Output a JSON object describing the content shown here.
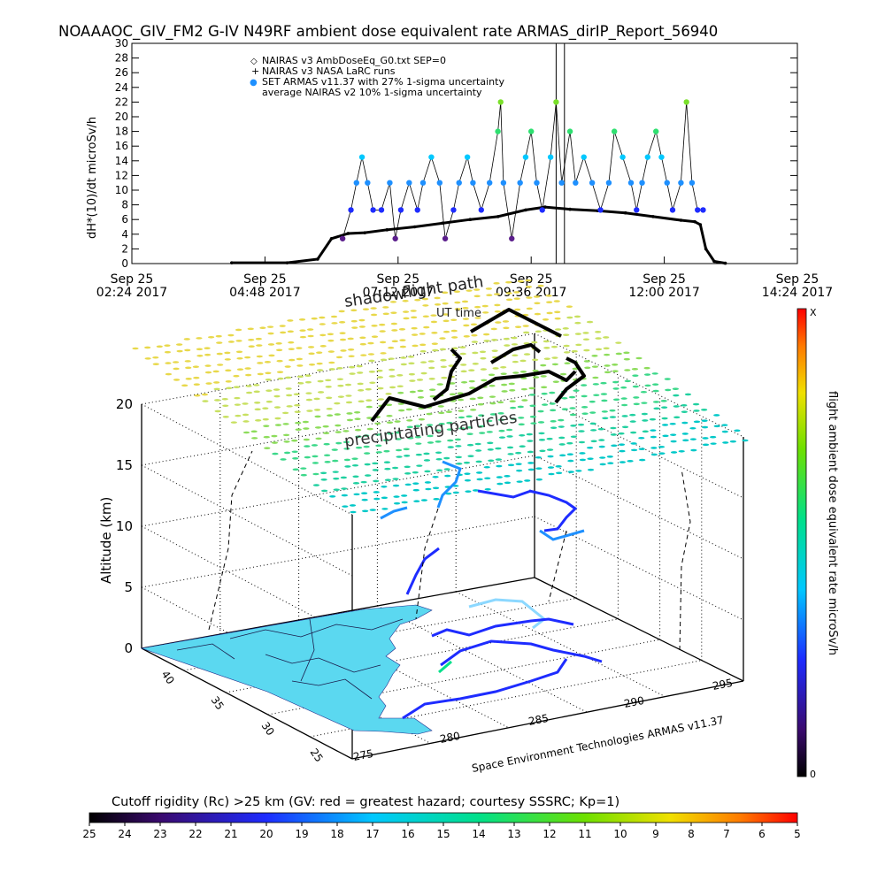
{
  "title": "NOAAAOC_GIV_FM2 G-IV   N49RF  ambient dose equivalent rate ARMAS_dirIP_Report_56940",
  "chart_data": [
    {
      "type": "scatter",
      "ylabel": "dH*(10)/dt microSv/h",
      "ylim": [
        0,
        30
      ],
      "y_ticks": [
        "0",
        "2",
        "4",
        "6",
        "8",
        "10",
        "12",
        "14",
        "16",
        "18",
        "20",
        "22",
        "24",
        "26",
        "28",
        "30"
      ],
      "x_ticks": [
        {
          "line1": "Sep 25",
          "line2": "02:24 2017"
        },
        {
          "line1": "Sep 25",
          "line2": "04:48 2017"
        },
        {
          "line1": "Sep 25",
          "line2": "07:12 2017"
        },
        {
          "line1": "Sep 25",
          "line2": "09:36 2017"
        },
        {
          "line1": "Sep 25",
          "line2": "12:00 2017"
        },
        {
          "line1": "Sep 25",
          "line2": "14:24 2017"
        }
      ],
      "xlim_hours": [
        2.4,
        14.4
      ],
      "legend": [
        {
          "symbol": "◇",
          "label": "NAIRAS v3 AmbDoseEq_G0.txt SEP=0"
        },
        {
          "symbol": "+",
          "label": "NAIRAS v3 NASA LaRC runs"
        },
        {
          "symbol": "●",
          "label": "SET ARMAS v11.37 with 27% 1-sigma uncertainty"
        },
        {
          "symbol": "",
          "label": "average NAIRAS v2 10% 1-sigma uncertainty"
        }
      ],
      "nairas_curve": [
        [
          4.2,
          0.1
        ],
        [
          5.2,
          0.1
        ],
        [
          5.75,
          0.6
        ],
        [
          6.0,
          3.4
        ],
        [
          6.3,
          4.1
        ],
        [
          6.6,
          4.2
        ],
        [
          7.0,
          4.6
        ],
        [
          7.5,
          5.0
        ],
        [
          8.0,
          5.5
        ],
        [
          8.5,
          6.0
        ],
        [
          9.0,
          6.4
        ],
        [
          9.5,
          7.3
        ],
        [
          9.85,
          7.7
        ],
        [
          10.3,
          7.4
        ],
        [
          10.8,
          7.2
        ],
        [
          11.3,
          6.9
        ],
        [
          11.8,
          6.4
        ],
        [
          12.3,
          5.9
        ],
        [
          12.55,
          5.7
        ],
        [
          12.65,
          5.3
        ],
        [
          12.75,
          2.0
        ],
        [
          12.9,
          0.3
        ],
        [
          13.1,
          0.05
        ]
      ],
      "armas_points": [
        [
          6.2,
          3.4
        ],
        [
          6.35,
          7.3
        ],
        [
          6.45,
          11.0
        ],
        [
          6.55,
          14.5
        ],
        [
          6.65,
          11.0
        ],
        [
          6.75,
          7.3
        ],
        [
          6.9,
          7.3
        ],
        [
          7.05,
          11.0
        ],
        [
          7.15,
          3.4
        ],
        [
          7.25,
          7.3
        ],
        [
          7.4,
          11.0
        ],
        [
          7.55,
          7.3
        ],
        [
          7.65,
          11.0
        ],
        [
          7.8,
          14.5
        ],
        [
          7.95,
          11.0
        ],
        [
          8.05,
          3.4
        ],
        [
          8.2,
          7.3
        ],
        [
          8.3,
          11.0
        ],
        [
          8.45,
          14.5
        ],
        [
          8.55,
          11.0
        ],
        [
          8.7,
          7.3
        ],
        [
          8.85,
          11.0
        ],
        [
          9.0,
          18.0
        ],
        [
          9.05,
          22.0
        ],
        [
          9.1,
          11.0
        ],
        [
          9.25,
          3.4
        ],
        [
          9.4,
          11.0
        ],
        [
          9.5,
          14.5
        ],
        [
          9.6,
          18.0
        ],
        [
          9.7,
          11.0
        ],
        [
          9.8,
          7.3
        ],
        [
          9.95,
          14.5
        ],
        [
          10.05,
          22.0
        ],
        [
          10.15,
          11.0
        ],
        [
          10.3,
          18.0
        ],
        [
          10.4,
          11.0
        ],
        [
          10.55,
          14.5
        ],
        [
          10.7,
          11.0
        ],
        [
          10.85,
          7.3
        ],
        [
          11.0,
          11.0
        ],
        [
          11.1,
          18.0
        ],
        [
          11.25,
          14.5
        ],
        [
          11.4,
          11.0
        ],
        [
          11.5,
          7.3
        ],
        [
          11.6,
          11.0
        ],
        [
          11.7,
          14.5
        ],
        [
          11.85,
          18.0
        ],
        [
          11.95,
          14.5
        ],
        [
          12.05,
          11.0
        ],
        [
          12.15,
          7.3
        ],
        [
          12.3,
          11.0
        ],
        [
          12.4,
          22.0
        ],
        [
          12.5,
          11.0
        ],
        [
          12.6,
          7.3
        ],
        [
          12.7,
          7.3
        ]
      ],
      "vertical_lines_hours": [
        10.05,
        10.2
      ]
    },
    {
      "type": "3d-scatter",
      "zlabel": "Altitude (km)",
      "z_ticks": [
        "0",
        "5",
        "10",
        "15",
        "20"
      ],
      "lat_ticks": [
        "40",
        "35",
        "30",
        "25"
      ],
      "lon_ticks": [
        "275",
        "280",
        "285",
        "290",
        "295"
      ],
      "labels": {
        "shadow": "shadow",
        "flightpath": "flight path",
        "ut_time": "UT time",
        "precip": "precipitating particles",
        "credit": "Space Environment Technologies ARMAS v11.37"
      },
      "colorbar": {
        "label": "flight ambient dose equivalent rate microSv/h",
        "top_label": "X",
        "bottom_label": "0"
      }
    }
  ],
  "rigidity_bar": {
    "title": "Cutoff rigidity (Rc) >25 km (GV: red = greatest hazard; courtesy SSSRC; Kp=1)",
    "ticks": [
      "25",
      "24",
      "23",
      "22",
      "21",
      "20",
      "19",
      "18",
      "17",
      "16",
      "15",
      "14",
      "13",
      "12",
      "11",
      "10",
      "9",
      "8",
      "7",
      "6",
      "5"
    ]
  },
  "colors": {
    "black": "#000000",
    "land": "#5bd8f0",
    "armas_blue": "#1e90ff",
    "armas_purple": "#5b1e8c"
  }
}
